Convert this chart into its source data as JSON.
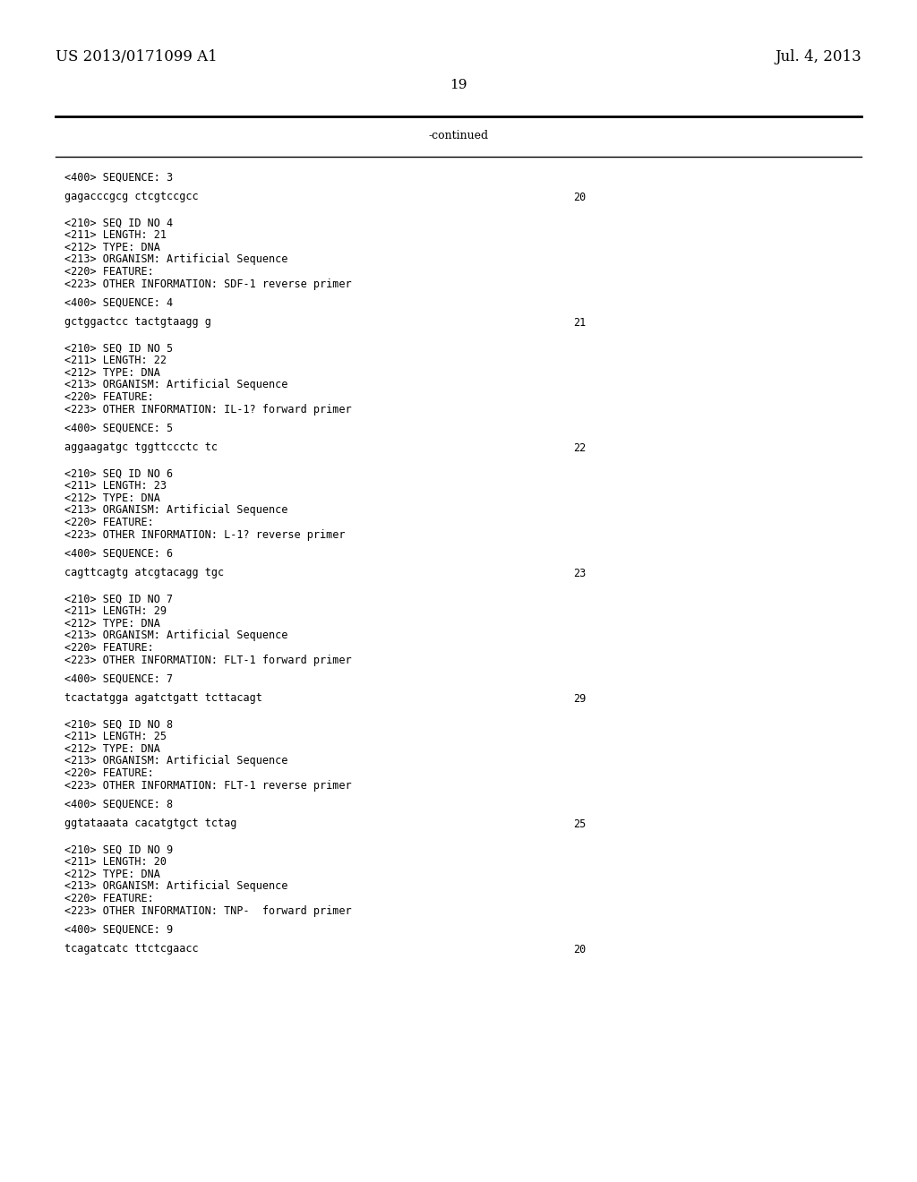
{
  "background_color": "#ffffff",
  "header_left": "US 2013/0171099 A1",
  "header_right": "Jul. 4, 2013",
  "page_number": "19",
  "continued_label": "-continued",
  "body_font_size": 8.5,
  "header_font_size": 12,
  "page_num_font_size": 11,
  "content_lines": [
    {
      "text": "<400> SEQUENCE: 3",
      "type": "tag"
    },
    {
      "text": "",
      "type": "blank"
    },
    {
      "text": "gagacccgcg ctcgtccgcc",
      "right_num": "20",
      "type": "seq"
    },
    {
      "text": "",
      "type": "blank"
    },
    {
      "text": "",
      "type": "blank"
    },
    {
      "text": "<210> SEQ ID NO 4",
      "type": "tag"
    },
    {
      "text": "<211> LENGTH: 21",
      "type": "tag"
    },
    {
      "text": "<212> TYPE: DNA",
      "type": "tag"
    },
    {
      "text": "<213> ORGANISM: Artificial Sequence",
      "type": "tag"
    },
    {
      "text": "<220> FEATURE:",
      "type": "tag"
    },
    {
      "text": "<223> OTHER INFORMATION: SDF-1 reverse primer",
      "type": "tag"
    },
    {
      "text": "",
      "type": "blank"
    },
    {
      "text": "<400> SEQUENCE: 4",
      "type": "tag"
    },
    {
      "text": "",
      "type": "blank"
    },
    {
      "text": "gctggactcc tactgtaagg g",
      "right_num": "21",
      "type": "seq"
    },
    {
      "text": "",
      "type": "blank"
    },
    {
      "text": "",
      "type": "blank"
    },
    {
      "text": "<210> SEQ ID NO 5",
      "type": "tag"
    },
    {
      "text": "<211> LENGTH: 22",
      "type": "tag"
    },
    {
      "text": "<212> TYPE: DNA",
      "type": "tag"
    },
    {
      "text": "<213> ORGANISM: Artificial Sequence",
      "type": "tag"
    },
    {
      "text": "<220> FEATURE:",
      "type": "tag"
    },
    {
      "text": "<223> OTHER INFORMATION: IL-1? forward primer",
      "type": "tag"
    },
    {
      "text": "",
      "type": "blank"
    },
    {
      "text": "<400> SEQUENCE: 5",
      "type": "tag"
    },
    {
      "text": "",
      "type": "blank"
    },
    {
      "text": "aggaagatgc tggttccctc tc",
      "right_num": "22",
      "type": "seq"
    },
    {
      "text": "",
      "type": "blank"
    },
    {
      "text": "",
      "type": "blank"
    },
    {
      "text": "<210> SEQ ID NO 6",
      "type": "tag"
    },
    {
      "text": "<211> LENGTH: 23",
      "type": "tag"
    },
    {
      "text": "<212> TYPE: DNA",
      "type": "tag"
    },
    {
      "text": "<213> ORGANISM: Artificial Sequence",
      "type": "tag"
    },
    {
      "text": "<220> FEATURE:",
      "type": "tag"
    },
    {
      "text": "<223> OTHER INFORMATION: L-1? reverse primer",
      "type": "tag"
    },
    {
      "text": "",
      "type": "blank"
    },
    {
      "text": "<400> SEQUENCE: 6",
      "type": "tag"
    },
    {
      "text": "",
      "type": "blank"
    },
    {
      "text": "cagttcagtg atcgtacagg tgc",
      "right_num": "23",
      "type": "seq"
    },
    {
      "text": "",
      "type": "blank"
    },
    {
      "text": "",
      "type": "blank"
    },
    {
      "text": "<210> SEQ ID NO 7",
      "type": "tag"
    },
    {
      "text": "<211> LENGTH: 29",
      "type": "tag"
    },
    {
      "text": "<212> TYPE: DNA",
      "type": "tag"
    },
    {
      "text": "<213> ORGANISM: Artificial Sequence",
      "type": "tag"
    },
    {
      "text": "<220> FEATURE:",
      "type": "tag"
    },
    {
      "text": "<223> OTHER INFORMATION: FLT-1 forward primer",
      "type": "tag"
    },
    {
      "text": "",
      "type": "blank"
    },
    {
      "text": "<400> SEQUENCE: 7",
      "type": "tag"
    },
    {
      "text": "",
      "type": "blank"
    },
    {
      "text": "tcactatgga agatctgatt tcttacagt",
      "right_num": "29",
      "type": "seq"
    },
    {
      "text": "",
      "type": "blank"
    },
    {
      "text": "",
      "type": "blank"
    },
    {
      "text": "<210> SEQ ID NO 8",
      "type": "tag"
    },
    {
      "text": "<211> LENGTH: 25",
      "type": "tag"
    },
    {
      "text": "<212> TYPE: DNA",
      "type": "tag"
    },
    {
      "text": "<213> ORGANISM: Artificial Sequence",
      "type": "tag"
    },
    {
      "text": "<220> FEATURE:",
      "type": "tag"
    },
    {
      "text": "<223> OTHER INFORMATION: FLT-1 reverse primer",
      "type": "tag"
    },
    {
      "text": "",
      "type": "blank"
    },
    {
      "text": "<400> SEQUENCE: 8",
      "type": "tag"
    },
    {
      "text": "",
      "type": "blank"
    },
    {
      "text": "ggtataaata cacatgtgct tctag",
      "right_num": "25",
      "type": "seq"
    },
    {
      "text": "",
      "type": "blank"
    },
    {
      "text": "",
      "type": "blank"
    },
    {
      "text": "<210> SEQ ID NO 9",
      "type": "tag"
    },
    {
      "text": "<211> LENGTH: 20",
      "type": "tag"
    },
    {
      "text": "<212> TYPE: DNA",
      "type": "tag"
    },
    {
      "text": "<213> ORGANISM: Artificial Sequence",
      "type": "tag"
    },
    {
      "text": "<220> FEATURE:",
      "type": "tag"
    },
    {
      "text": "<223> OTHER INFORMATION: TNP-  forward primer",
      "type": "tag"
    },
    {
      "text": "",
      "type": "blank"
    },
    {
      "text": "<400> SEQUENCE: 9",
      "type": "tag"
    },
    {
      "text": "",
      "type": "blank"
    },
    {
      "text": "tcagatcatc ttctcgaacc",
      "right_num": "20",
      "type": "seq"
    }
  ]
}
